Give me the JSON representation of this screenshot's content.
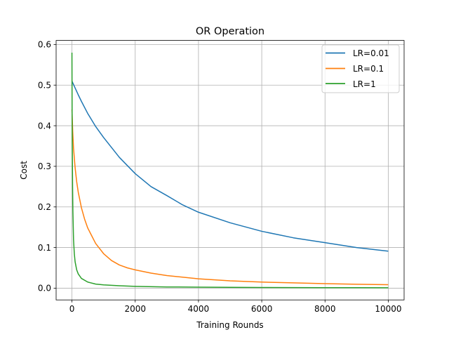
{
  "chart_data": {
    "type": "line",
    "title": "OR Operation",
    "xlabel": "Training Rounds",
    "ylabel": "Cost",
    "xlim": [
      -500,
      10500
    ],
    "ylim": [
      -0.029,
      0.61
    ],
    "xticks": [
      0,
      2000,
      4000,
      6000,
      8000,
      10000
    ],
    "xtick_labels": [
      "0",
      "2000",
      "4000",
      "6000",
      "8000",
      "10000"
    ],
    "yticks": [
      0.0,
      0.1,
      0.2,
      0.3,
      0.4,
      0.5,
      0.6
    ],
    "ytick_labels": [
      "0.0",
      "0.1",
      "0.2",
      "0.3",
      "0.4",
      "0.5",
      "0.6"
    ],
    "grid": true,
    "legend": "top-right",
    "series": [
      {
        "name": "LR=0.01",
        "color": "#1f77b4",
        "x": [
          0,
          100,
          200,
          300,
          500,
          750,
          1000,
          1500,
          2000,
          2500,
          3000,
          3500,
          4000,
          5000,
          6000,
          7000,
          8000,
          9000,
          10000
        ],
        "y": [
          0.51,
          0.493,
          0.476,
          0.46,
          0.43,
          0.398,
          0.371,
          0.322,
          0.282,
          0.25,
          0.228,
          0.205,
          0.187,
          0.161,
          0.14,
          0.124,
          0.112,
          0.1,
          0.091
        ]
      },
      {
        "name": "LR=0.1",
        "color": "#ff7f0e",
        "x": [
          0,
          25,
          50,
          100,
          150,
          200,
          300,
          400,
          500,
          750,
          1000,
          1250,
          1500,
          1750,
          2000,
          2500,
          3000,
          4000,
          5000,
          6000,
          7000,
          8000,
          9000,
          10000
        ],
        "y": [
          0.44,
          0.385,
          0.345,
          0.297,
          0.262,
          0.236,
          0.198,
          0.17,
          0.148,
          0.11,
          0.085,
          0.068,
          0.057,
          0.05,
          0.045,
          0.037,
          0.031,
          0.023,
          0.018,
          0.015,
          0.013,
          0.011,
          0.0095,
          0.0085
        ]
      },
      {
        "name": "LR=1",
        "color": "#2ca02c",
        "x": [
          0,
          5,
          10,
          20,
          30,
          50,
          75,
          100,
          150,
          200,
          300,
          500,
          750,
          1000,
          1500,
          2000,
          3000,
          4000,
          6000,
          8000,
          10000
        ],
        "y": [
          0.58,
          0.43,
          0.35,
          0.25,
          0.19,
          0.12,
          0.085,
          0.065,
          0.045,
          0.035,
          0.024,
          0.015,
          0.01,
          0.008,
          0.006,
          0.0045,
          0.003,
          0.0025,
          0.0017,
          0.0012,
          0.001
        ]
      }
    ]
  }
}
